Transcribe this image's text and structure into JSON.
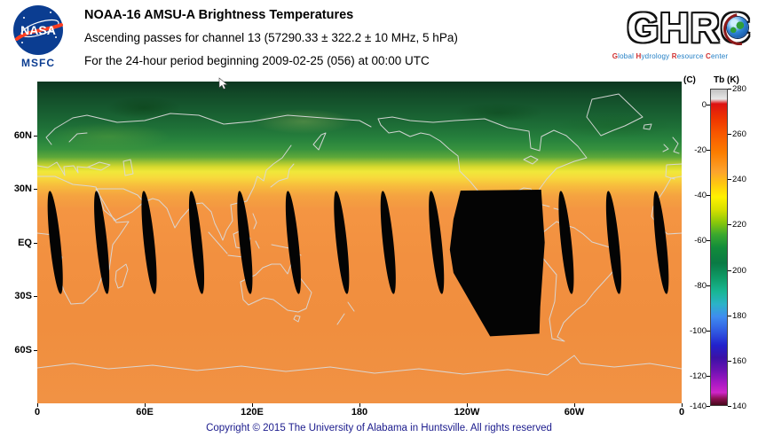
{
  "header": {
    "nasa_logo": {
      "label": "NASA",
      "org": "MSFC"
    },
    "title": "NOAA-16 AMSU-A Brightness Temperatures",
    "subtitle": "Ascending passes for channel 13 (57290.33 ± 322.2 ± 10 MHz, 5 hPa)",
    "period": "For the 24-hour period beginning 2009-02-25 (056) at 00:00 UTC",
    "ghrc_logo": {
      "letters_left": "GHR",
      "letter_c": "C",
      "tagline_words": [
        "Global",
        "Hydrology",
        "Resource",
        "Center"
      ]
    }
  },
  "map": {
    "x_axis": [
      {
        "label": "0",
        "lon": 0
      },
      {
        "label": "60E",
        "lon": 60
      },
      {
        "label": "120E",
        "lon": 120
      },
      {
        "label": "180",
        "lon": 180
      },
      {
        "label": "120W",
        "lon": 240
      },
      {
        "label": "60W",
        "lon": 300
      },
      {
        "label": "0",
        "lon": 360
      }
    ],
    "y_axis": [
      {
        "label": "60N",
        "lat": 60
      },
      {
        "label": "30N",
        "lat": 30
      },
      {
        "label": "EQ",
        "lat": 0
      },
      {
        "label": "30S",
        "lat": -30
      },
      {
        "label": "60S",
        "lat": -60
      }
    ]
  },
  "colorbar": {
    "unit_left": "(C)",
    "title": "Tb (K)",
    "kelvin_labels": [
      280,
      260,
      240,
      220,
      200,
      180,
      160,
      140
    ],
    "celsius_labels": [
      0,
      -20,
      -40,
      -60,
      -80,
      -100,
      -120,
      -140
    ],
    "stops": [
      [
        0,
        "#c2c2c2"
      ],
      [
        3,
        "#e8e8e8"
      ],
      [
        4.5,
        "#dc1212"
      ],
      [
        9,
        "#ee3300"
      ],
      [
        14,
        "#f85800"
      ],
      [
        20,
        "#fb7d00"
      ],
      [
        26,
        "#fda32c"
      ],
      [
        30,
        "#ffc810"
      ],
      [
        34,
        "#fff200"
      ],
      [
        38,
        "#d8e000"
      ],
      [
        42,
        "#8cc80a"
      ],
      [
        46,
        "#3aa82e"
      ],
      [
        50,
        "#128c3a"
      ],
      [
        55,
        "#0a7a44"
      ],
      [
        60,
        "#0f9d6a"
      ],
      [
        64,
        "#18b694"
      ],
      [
        68,
        "#2bb3c8"
      ],
      [
        72,
        "#3f8cf0"
      ],
      [
        77,
        "#2f55e0"
      ],
      [
        81,
        "#2222cc"
      ],
      [
        85,
        "#3b11a6"
      ],
      [
        89,
        "#6c12b2"
      ],
      [
        93,
        "#a818c4"
      ],
      [
        96,
        "#cf25c8"
      ],
      [
        98,
        "#8a1050"
      ],
      [
        100,
        "#47081a"
      ]
    ]
  },
  "footer": {
    "copyright": "Copyright © 2015 The University of Alabama in Huntsville.  All rights reserved"
  },
  "chart_data": {
    "type": "heatmap",
    "title": "NOAA-16 AMSU-A channel 13 brightness temperature (ascending passes), 24 h beginning 2009-02-25 (056) 00:00 UTC",
    "units": "K",
    "projection": "equirectangular, longitude 0–360E left to right, latitude 90N–90S top to bottom",
    "colorbar_range_k": [
      140,
      280
    ],
    "colorbar_ticks_k": [
      280,
      260,
      240,
      220,
      200,
      180,
      160,
      140
    ],
    "colorbar_ticks_c": [
      0,
      -20,
      -40,
      -60,
      -80,
      -100,
      -120,
      -140
    ],
    "x_ticks_deg": [
      0,
      60,
      120,
      180,
      240,
      300,
      360
    ],
    "y_ticks_deg": [
      60,
      30,
      0,
      -30,
      -60
    ],
    "zonal_profile": {
      "lat": [
        90,
        75,
        62,
        52,
        46,
        40,
        30,
        15,
        0,
        -15,
        -30,
        -45,
        -60,
        -75,
        -90
      ],
      "tb_k": [
        205,
        210,
        220,
        235,
        243,
        248,
        251,
        252,
        252,
        251,
        251,
        250,
        249,
        249,
        250
      ]
    },
    "data_gaps": {
      "description": "Black areas = no ascending-pass coverage between adjacent orbit swaths; one large missing-data region over the SE Pacific / western South America",
      "sliver_center_lons": [
        10,
        36,
        62.5,
        89,
        116,
        143,
        170,
        196,
        223,
        295.5,
        322,
        348.5
      ],
      "sliver_lat_halfwidth": 29,
      "sliver_halfwidth_lon": 3,
      "sliver_tilt_deg": -6,
      "large_gap_outline": [
        [
          236.5,
          29
        ],
        [
          281.5,
          29.5
        ],
        [
          283.5,
          0
        ],
        [
          281,
          -36
        ],
        [
          280.5,
          -51
        ],
        [
          253,
          -52.5
        ],
        [
          244,
          -37
        ],
        [
          232.5,
          -17
        ],
        [
          230.5,
          -4
        ],
        [
          232.5,
          13
        ],
        [
          236.5,
          29
        ]
      ]
    }
  }
}
